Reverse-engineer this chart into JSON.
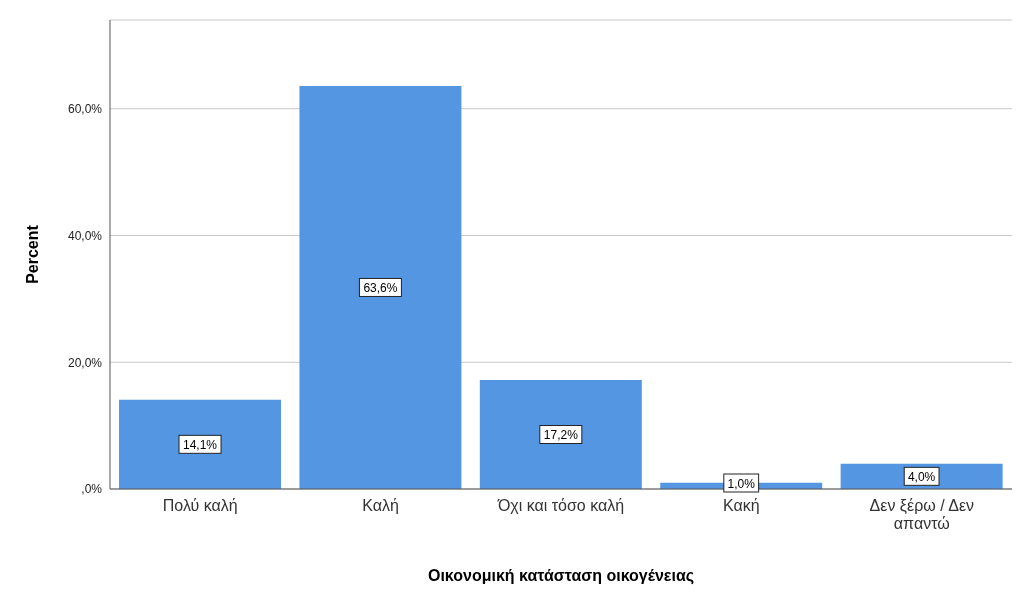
{
  "chart_data": {
    "type": "bar",
    "xlabel": "Οικονομική κατάσταση οικογένειας",
    "ylabel": "Percent",
    "categories": [
      "Πολύ καλή",
      "Καλή",
      "Όχι και τόσο καλή",
      "Κακή",
      "Δεν ξέρω / Δεν απαντώ"
    ],
    "values": [
      14.1,
      63.6,
      17.2,
      1.0,
      4.0
    ],
    "value_labels": [
      "14,1%",
      "63,6%",
      "17,2%",
      "1,0%",
      "4,0%"
    ],
    "color": "#5596e3",
    "ylim": [
      0,
      74
    ],
    "yticks": [
      {
        "value": 0,
        "label": ",0%"
      },
      {
        "value": 20,
        "label": "20,0%"
      },
      {
        "value": 40,
        "label": "40,0%"
      },
      {
        "value": 60,
        "label": "60,0%"
      }
    ],
    "grid": "y"
  }
}
